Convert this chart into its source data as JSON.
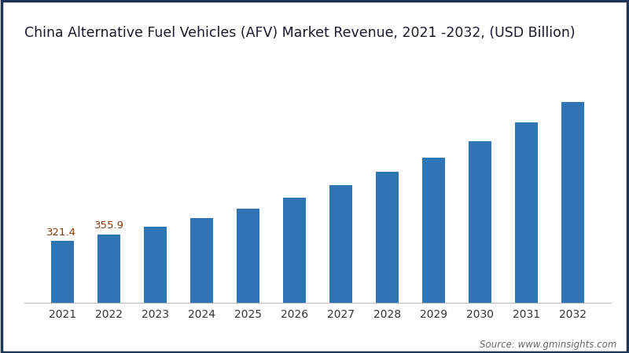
{
  "title": "China Alternative Fuel Vehicles (AFV) Market Revenue, 2021 -2032, (USD Billion)",
  "years": [
    2021,
    2022,
    2023,
    2024,
    2025,
    2026,
    2027,
    2028,
    2029,
    2030,
    2031,
    2032
  ],
  "values": [
    321.4,
    355.9,
    396.0,
    441.0,
    491.0,
    548.0,
    611.0,
    680.0,
    757.0,
    843.0,
    939.0,
    1045.0
  ],
  "bar_color": "#2E75B6",
  "background_color": "#FFFFFF",
  "outer_border_color": "#1D3557",
  "label_color": "#8B3A00",
  "title_fontsize": 12.5,
  "label_fontsize": 9.5,
  "tick_fontsize": 10,
  "source_text": "Source: www.gminsights.com",
  "source_fontsize": 8.5,
  "ylim": [
    0,
    1300
  ],
  "figsize": [
    8.0,
    4.5
  ],
  "dpi": 100
}
